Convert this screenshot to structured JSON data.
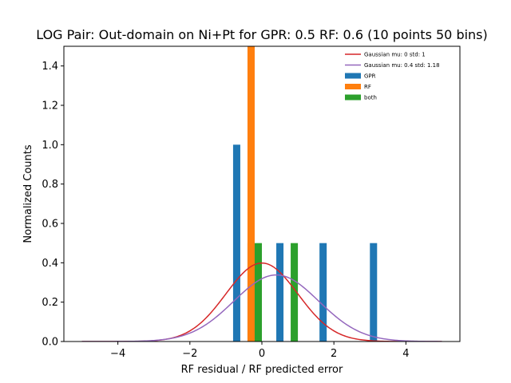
{
  "chart_data": {
    "type": "bar",
    "title": "LOG Pair: Out-domain on Ni+Pt for GPR: 0.5 RF: 0.6 (10 points 50 bins)",
    "xlabel": "RF residual / RF predicted error",
    "ylabel": "Normalized Counts",
    "xlim": [
      -5.5,
      5.5
    ],
    "ylim": [
      0,
      1.5
    ],
    "xticks": [
      -4,
      -2,
      0,
      2,
      4
    ],
    "xtick_labels": [
      "−4",
      "−2",
      "0",
      "2",
      "4"
    ],
    "yticks": [
      0.0,
      0.2,
      0.4,
      0.6,
      0.8,
      1.0,
      1.2,
      1.4
    ],
    "ytick_labels": [
      "0.0",
      "0.2",
      "0.4",
      "0.6",
      "0.8",
      "1.0",
      "1.2",
      "1.4"
    ],
    "grid": false,
    "legend_position": "top-right",
    "bar_width": 0.2,
    "series": [
      {
        "name": "GPR",
        "kind": "bar",
        "color": "#1f77b4",
        "x": [
          -0.7,
          -0.3,
          0.5,
          1.7,
          3.1
        ],
        "values": [
          1.0,
          0.5,
          0.5,
          0.5,
          0.5
        ]
      },
      {
        "name": "RF",
        "kind": "bar",
        "color": "#ff7f0e",
        "x": [
          -0.3
        ],
        "values": [
          1.5
        ]
      },
      {
        "name": "both",
        "kind": "bar",
        "color": "#2ca02c",
        "x": [
          -0.1,
          0.9
        ],
        "values": [
          0.5,
          0.5
        ]
      },
      {
        "name": "Gaussian mu: 0 std: 1",
        "kind": "line",
        "color": "#d62728",
        "mu": 0,
        "std": 1,
        "x_range": [
          -5,
          5
        ]
      },
      {
        "name": "Gaussian mu: 0.4 std: 1.18",
        "kind": "line",
        "color": "#9467bd",
        "mu": 0.4,
        "std": 1.18,
        "x_range": [
          -5,
          5
        ]
      }
    ],
    "legend_order": [
      "Gaussian mu: 0 std: 1",
      "Gaussian mu: 0.4 std: 1.18",
      "GPR",
      "RF",
      "both"
    ]
  }
}
